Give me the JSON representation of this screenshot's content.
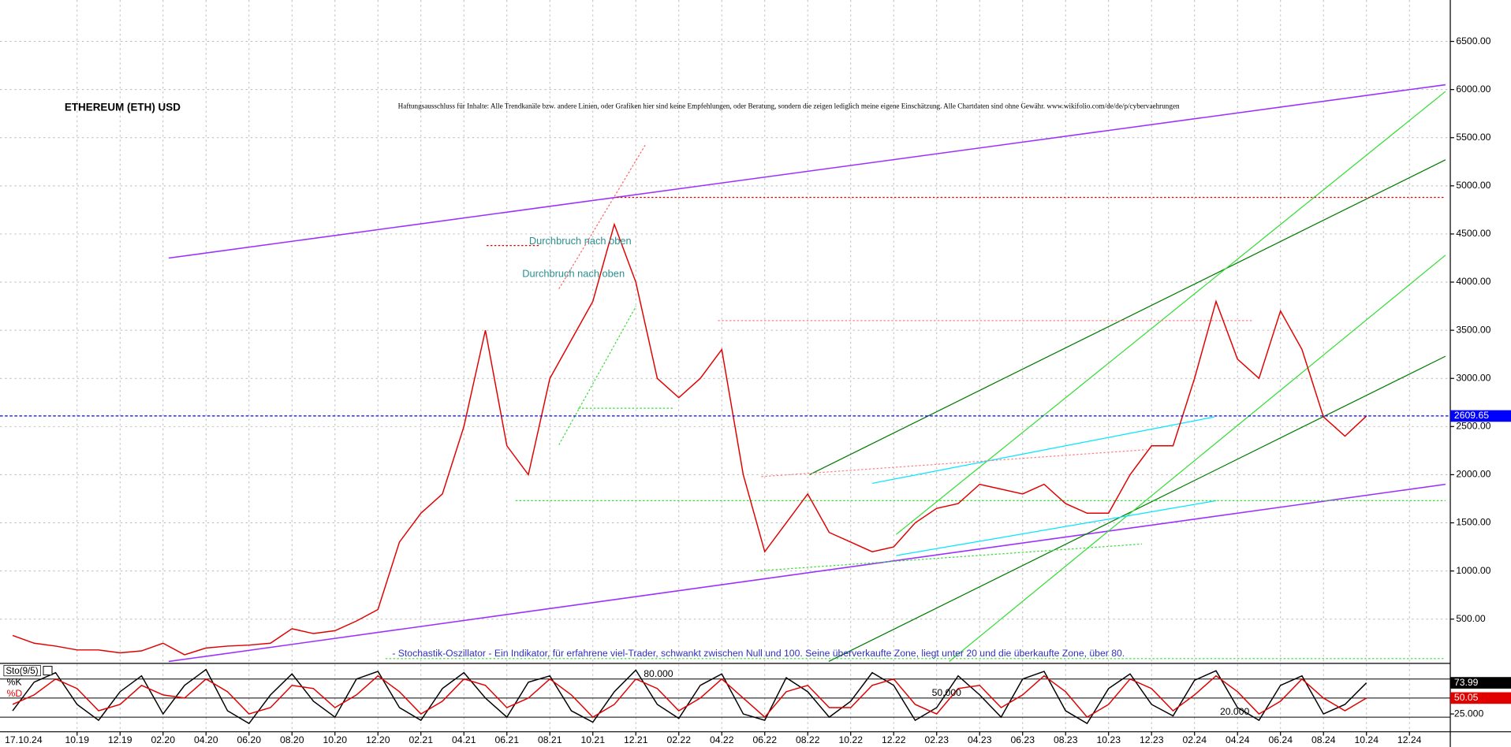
{
  "chart_data": [
    {
      "type": "line",
      "title": "ETHEREUM (ETH) USD",
      "disclaimer": "Haftungsausschluss für Inhalte: Alle Trendkanäle bzw. andere Linien, oder Grafiken hier sind keine Empfehlungen, oder Beratung, sondern die zeigen lediglich meine eigene Einschätzung. Alle Chartdaten sind ohne Gewähr.  www.wikifolio.com/de/de/p/cybervaehrungen",
      "annotations": [
        "Durchbruch nach oben",
        "Durchbruch nach oben"
      ],
      "date": "17.10.24",
      "categories": [
        null,
        null,
        null,
        "10.19",
        null,
        "12.19",
        null,
        "02.20",
        null,
        "04.20",
        null,
        "06.20",
        null,
        "08.20",
        null,
        "10.20",
        null,
        "12.20",
        null,
        "02.21",
        null,
        "04.21",
        null,
        "06.21",
        null,
        "08.21",
        null,
        "10.21",
        null,
        "12.21",
        null,
        "02.22",
        null,
        "04.22",
        null,
        "06.22",
        null,
        "08.22",
        null,
        "10.22",
        null,
        "12.22",
        null,
        "02.23",
        null,
        "04.23",
        null,
        "06.23",
        null,
        "08.23",
        null,
        "10.23",
        null,
        "12.23",
        null,
        "02.24",
        null,
        "04.24",
        null,
        "06.24",
        null,
        "08.24",
        null,
        "10.24",
        null,
        "12.24"
      ],
      "series": [
        {
          "name": "ETHEREUM (ETH) USD",
          "color": "#e00000",
          "values": [
            330,
            250,
            220,
            180,
            180,
            150,
            170,
            250,
            130,
            200,
            220,
            230,
            250,
            400,
            350,
            380,
            480,
            600,
            1300,
            1600,
            1800,
            2500,
            3500,
            2300,
            2000,
            3000,
            3400,
            3800,
            4600,
            4000,
            3000,
            2800,
            3000,
            3300,
            2000,
            1200,
            1500,
            1800,
            1400,
            1300,
            1200,
            1250,
            1500,
            1650,
            1700,
            1900,
            1850,
            1800,
            1900,
            1700,
            1600,
            1600,
            2000,
            2300,
            2300,
            3000,
            3800,
            3200,
            3000,
            3700,
            3300,
            2600,
            2400,
            2609.65,
            null,
            null
          ]
        }
      ],
      "last_price": 2609.65,
      "last_price_color": "#0000ff",
      "ylim": [
        50,
        6930
      ],
      "yticks": [
        {
          "value": 500,
          "label": "500.00"
        },
        {
          "value": 1000,
          "label": "1000.00"
        },
        {
          "value": 1500,
          "label": "1500.00"
        },
        {
          "value": 2000,
          "label": "2000.00"
        },
        {
          "value": 2500,
          "label": "2500.00"
        },
        {
          "value": 3000,
          "label": "3000.00"
        },
        {
          "value": 3500,
          "label": "3500.00"
        },
        {
          "value": 4000,
          "label": "4000.00"
        },
        {
          "value": 4500,
          "label": "4500.00"
        },
        {
          "value": 5000,
          "label": "5000.00"
        },
        {
          "value": 5500,
          "label": "5500.00"
        },
        {
          "value": 6000,
          "label": "6000.00"
        },
        {
          "value": 6500,
          "label": "6500.00"
        }
      ],
      "grid": true
    },
    {
      "type": "line",
      "title": "Sto(9/5)",
      "note": "- Stochastik-Oszillator - Ein Indikator, für erfahrene viel-Trader, schwankt zwischen Null und 100. Seine überverkaufte Zone, liegt unter 20 und die überkaufte Zone, über 80.",
      "series": [
        {
          "name": "%K",
          "color": "#000000",
          "values": [
            30,
            75,
            90,
            40,
            15,
            60,
            85,
            25,
            70,
            95,
            30,
            10,
            55,
            88,
            45,
            20,
            80,
            92,
            35,
            15,
            65,
            90,
            50,
            20,
            75,
            85,
            30,
            12,
            60,
            94,
            40,
            18,
            70,
            88,
            25,
            15,
            82,
            60,
            20,
            45,
            90,
            70,
            15,
            35,
            85,
            55,
            20,
            80,
            92,
            30,
            10,
            65,
            88,
            40,
            22,
            78,
            93,
            35,
            15,
            70,
            85,
            25,
            40,
            73.99,
            null,
            null
          ]
        },
        {
          "name": "%D",
          "color": "#e00000",
          "values": [
            40,
            55,
            80,
            65,
            30,
            40,
            70,
            55,
            50,
            80,
            60,
            25,
            35,
            70,
            65,
            35,
            55,
            85,
            60,
            25,
            45,
            80,
            70,
            35,
            50,
            80,
            55,
            20,
            40,
            80,
            65,
            30,
            50,
            80,
            50,
            20,
            60,
            70,
            35,
            35,
            70,
            80,
            40,
            25,
            65,
            70,
            35,
            55,
            85,
            60,
            20,
            40,
            80,
            65,
            30,
            55,
            85,
            60,
            25,
            45,
            80,
            50,
            30,
            50.05,
            null,
            null
          ]
        }
      ],
      "levels": [
        {
          "value": 80,
          "label": "80.000"
        },
        {
          "value": 50,
          "label": "50.000"
        },
        {
          "value": 20,
          "label": "20.000"
        }
      ],
      "ylim": [
        0,
        100
      ],
      "yticks": [
        {
          "value": 25,
          "label": "25.000"
        }
      ]
    }
  ]
}
